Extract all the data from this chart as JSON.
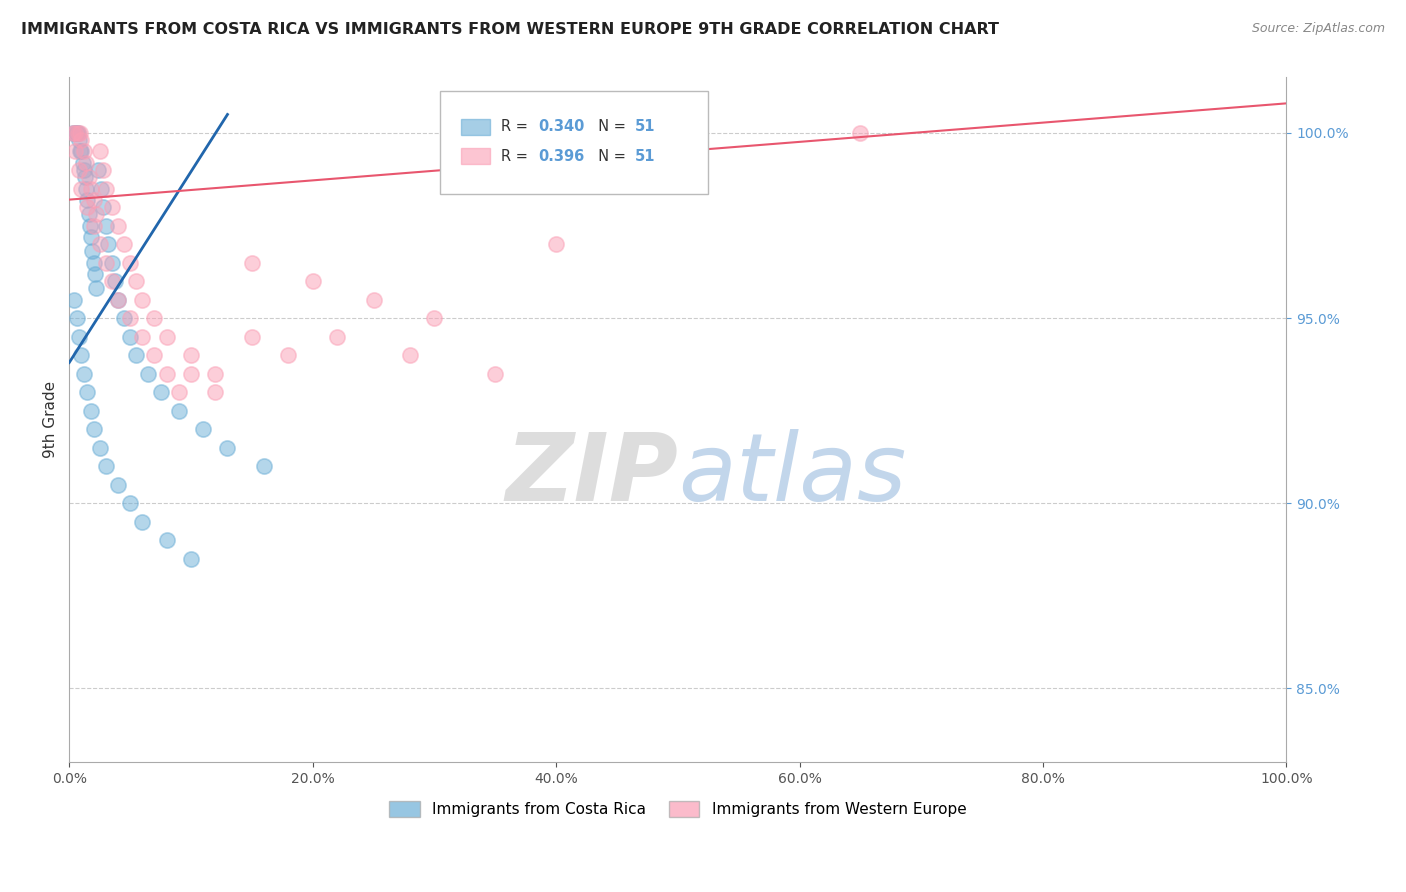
{
  "title": "IMMIGRANTS FROM COSTA RICA VS IMMIGRANTS FROM WESTERN EUROPE 9TH GRADE CORRELATION CHART",
  "source": "Source: ZipAtlas.com",
  "ylabel": "9th Grade",
  "right_yticks": [
    85.0,
    90.0,
    95.0,
    100.0
  ],
  "xlim": [
    0.0,
    100.0
  ],
  "ylim": [
    83.0,
    101.5
  ],
  "legend_labels": [
    "Immigrants from Costa Rica",
    "Immigrants from Western Europe"
  ],
  "R_blue": 0.34,
  "N_blue": 51,
  "R_pink": 0.396,
  "N_pink": 51,
  "blue_color": "#6baed6",
  "pink_color": "#fa9fb5",
  "trend_blue": "#2166ac",
  "trend_pink": "#e8566e",
  "watermark_ZIP": "ZIP",
  "watermark_atlas": "atlas",
  "blue_trend_x0": 0.0,
  "blue_trend_y0": 93.8,
  "blue_trend_x1": 13.0,
  "blue_trend_y1": 100.5,
  "pink_trend_x0": 0.0,
  "pink_trend_y0": 98.2,
  "pink_trend_x1": 100.0,
  "pink_trend_y1": 100.8,
  "blue_x": [
    0.3,
    0.5,
    0.6,
    0.7,
    0.8,
    0.9,
    1.0,
    1.1,
    1.2,
    1.3,
    1.4,
    1.5,
    1.6,
    1.7,
    1.8,
    1.9,
    2.0,
    2.1,
    2.2,
    2.4,
    2.6,
    2.8,
    3.0,
    3.2,
    3.5,
    3.8,
    4.0,
    4.5,
    5.0,
    5.5,
    6.5,
    7.5,
    9.0,
    11.0,
    13.0,
    16.0,
    0.4,
    0.6,
    0.8,
    1.0,
    1.2,
    1.5,
    1.8,
    2.0,
    2.5,
    3.0,
    4.0,
    5.0,
    6.0,
    8.0,
    10.0
  ],
  "blue_y": [
    100.0,
    100.0,
    100.0,
    100.0,
    99.8,
    99.5,
    99.5,
    99.2,
    99.0,
    98.8,
    98.5,
    98.2,
    97.8,
    97.5,
    97.2,
    96.8,
    96.5,
    96.2,
    95.8,
    99.0,
    98.5,
    98.0,
    97.5,
    97.0,
    96.5,
    96.0,
    95.5,
    95.0,
    94.5,
    94.0,
    93.5,
    93.0,
    92.5,
    92.0,
    91.5,
    91.0,
    95.5,
    95.0,
    94.5,
    94.0,
    93.5,
    93.0,
    92.5,
    92.0,
    91.5,
    91.0,
    90.5,
    90.0,
    89.5,
    89.0,
    88.5
  ],
  "pink_x": [
    0.3,
    0.5,
    0.7,
    0.9,
    1.0,
    1.2,
    1.4,
    1.6,
    1.8,
    2.0,
    2.2,
    2.5,
    2.8,
    3.0,
    3.5,
    4.0,
    4.5,
    5.0,
    5.5,
    6.0,
    7.0,
    8.0,
    10.0,
    12.0,
    15.0,
    20.0,
    25.0,
    30.0,
    40.0,
    65.0,
    0.5,
    0.8,
    1.0,
    1.5,
    2.0,
    2.5,
    3.0,
    3.5,
    4.0,
    5.0,
    6.0,
    7.0,
    8.0,
    9.0,
    10.0,
    12.0,
    15.0,
    18.0,
    22.0,
    28.0,
    35.0
  ],
  "pink_y": [
    100.0,
    100.0,
    100.0,
    100.0,
    99.8,
    99.5,
    99.2,
    98.8,
    98.5,
    98.2,
    97.8,
    99.5,
    99.0,
    98.5,
    98.0,
    97.5,
    97.0,
    96.5,
    96.0,
    95.5,
    95.0,
    94.5,
    94.0,
    93.5,
    96.5,
    96.0,
    95.5,
    95.0,
    97.0,
    100.0,
    99.5,
    99.0,
    98.5,
    98.0,
    97.5,
    97.0,
    96.5,
    96.0,
    95.5,
    95.0,
    94.5,
    94.0,
    93.5,
    93.0,
    93.5,
    93.0,
    94.5,
    94.0,
    94.5,
    94.0,
    93.5
  ]
}
